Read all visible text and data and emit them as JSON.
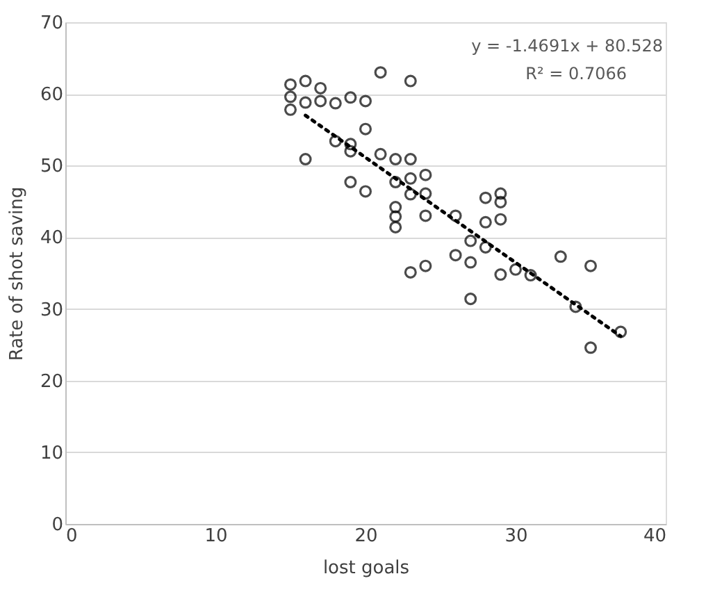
{
  "chart_data": {
    "type": "scatter",
    "xlabel": "lost goals",
    "ylabel": "Rate of shot saving",
    "xlim": [
      0,
      40
    ],
    "xticks": [
      0,
      10,
      20,
      30,
      40
    ],
    "ylim": [
      0,
      70
    ],
    "yticks": [
      0,
      10,
      20,
      30,
      40,
      50,
      60,
      70
    ],
    "grid": "y",
    "annotations": [
      "y = -1.4691x + 80.528",
      "R² = 0.7066"
    ],
    "series": [
      {
        "color": "#000000",
        "marker": "circle",
        "x": [
          15,
          15,
          15,
          16,
          16,
          17,
          17,
          18,
          19,
          20,
          21,
          23,
          20,
          16,
          18,
          19,
          19,
          21,
          22,
          23,
          19,
          20,
          22,
          23,
          24,
          23,
          24,
          22,
          22,
          22,
          24,
          26,
          28,
          29,
          29,
          29,
          28,
          27,
          28,
          26,
          27,
          24,
          23,
          29,
          27,
          30,
          31,
          33,
          35,
          34,
          37,
          35
        ],
        "values": [
          61.3,
          59.6,
          57.8,
          61.8,
          58.8,
          60.8,
          59.0,
          58.7,
          59.5,
          59.0,
          63.0,
          61.8,
          55.1,
          50.9,
          53.4,
          53.0,
          52.0,
          51.6,
          50.9,
          50.9,
          47.7,
          46.4,
          47.7,
          48.2,
          48.7,
          46.0,
          46.1,
          44.2,
          42.9,
          41.4,
          43.0,
          43.0,
          45.5,
          46.1,
          44.9,
          42.5,
          42.1,
          39.5,
          38.6,
          37.5,
          36.5,
          36.0,
          35.1,
          34.8,
          31.4,
          35.5,
          34.7,
          37.3,
          36.0,
          30.3,
          26.8,
          24.6
        ]
      },
      {
        "type": "line",
        "color": "#000000",
        "line_style": "dotted",
        "x": [
          16,
          37
        ],
        "values": [
          57.0,
          26.2
        ]
      }
    ]
  }
}
